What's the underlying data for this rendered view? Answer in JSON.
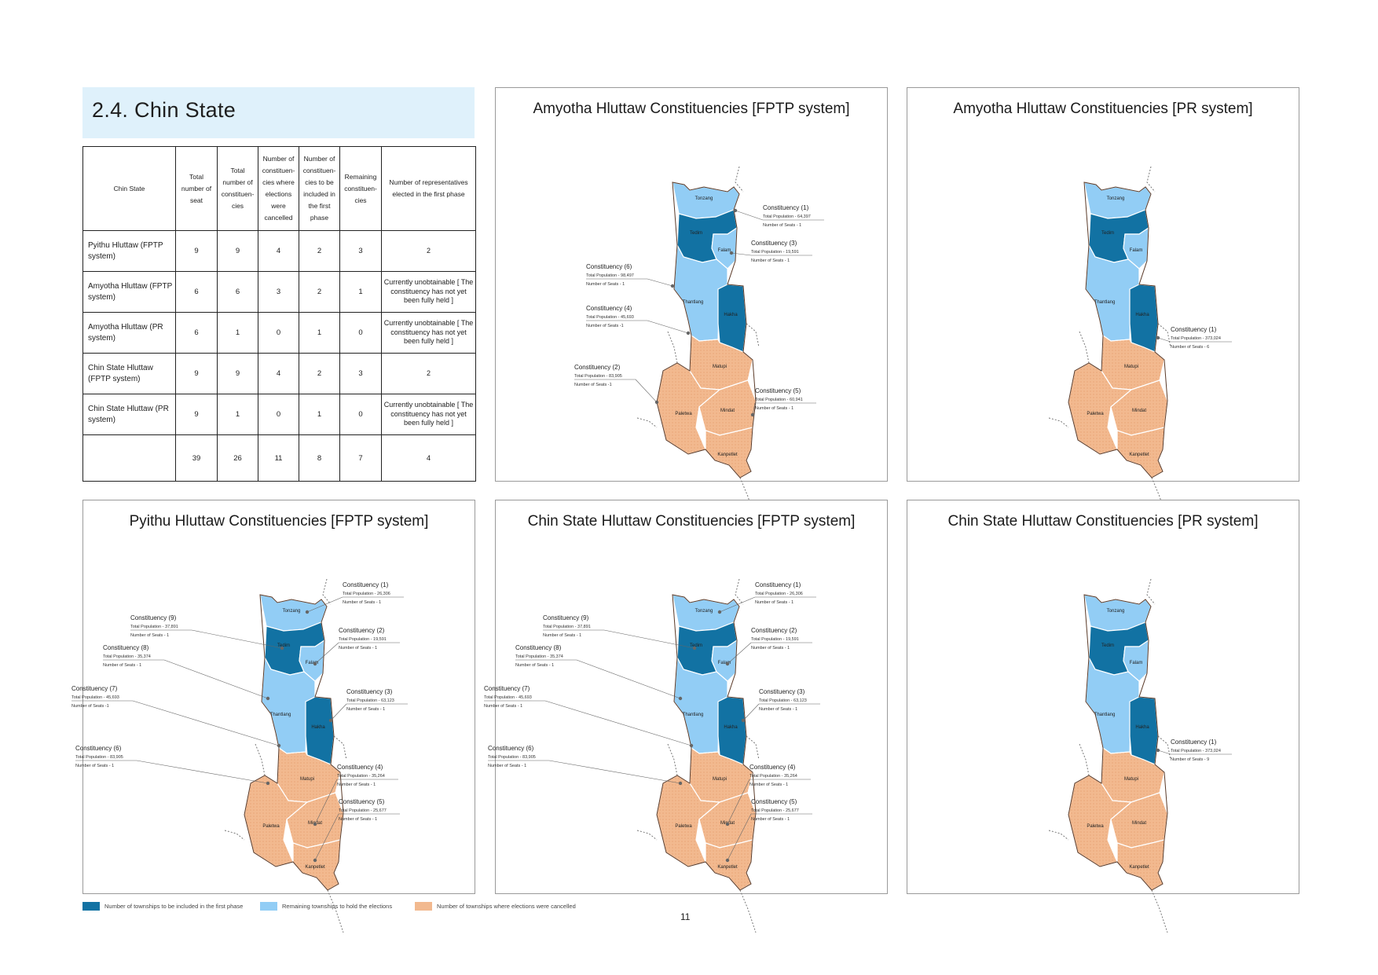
{
  "section_title": "2.4. Chin State",
  "table": {
    "headers": [
      "Chin State",
      "Total number of seat",
      "Total number of constituen-cies",
      "Number of constituen-cies where elections were cancelled",
      "Number of constituen-cies to be included in the first phase",
      "Remaining constituen-cies",
      "Number of representatives elected in the first phase"
    ],
    "rows": [
      {
        "name": "Pyithu Hluttaw (FPTP system)",
        "seats": "9",
        "constituencies": "9",
        "cancelled": "4",
        "first_phase": "2",
        "remaining": "3",
        "elected": "2"
      },
      {
        "name": "Amyotha Hluttaw (FPTP system)",
        "seats": "6",
        "constituencies": "6",
        "cancelled": "3",
        "first_phase": "2",
        "remaining": "1",
        "elected": "Currently unobtainable [ The constituency has not yet been fully held ]"
      },
      {
        "name": "Amyotha Hluttaw (PR system)",
        "seats": "6",
        "constituencies": "1",
        "cancelled": "0",
        "first_phase": "1",
        "remaining": "0",
        "elected": "Currently unobtainable [ The constituency has not yet been fully held ]"
      },
      {
        "name": "Chin State Hluttaw (FPTP system)",
        "seats": "9",
        "constituencies": "9",
        "cancelled": "4",
        "first_phase": "2",
        "remaining": "3",
        "elected": "2"
      },
      {
        "name": "Chin State Hluttaw (PR system)",
        "seats": "9",
        "constituencies": "1",
        "cancelled": "0",
        "first_phase": "1",
        "remaining": "0",
        "elected": "Currently unobtainable [ The constituency has not yet been fully held ]"
      }
    ],
    "totals": {
      "seats": "39",
      "constituencies": "26",
      "cancelled": "11",
      "first_phase": "8",
      "remaining": "7",
      "elected": "4"
    }
  },
  "colors": {
    "first_phase": "#1272a3",
    "remaining": "#92cdf5",
    "cancelled": "#f2b98f",
    "title_bg": "#dff1fb"
  },
  "townships": {
    "tonzang": "Tonzang",
    "tedim": "Tedim",
    "falam": "Falam",
    "thantlang": "Thantlang",
    "hakha": "Hakha",
    "matupi": "Matupi",
    "paletwa": "Paletwa",
    "mindat": "Mindat",
    "kanpetlet": "Kanpetlet"
  },
  "maps": {
    "amyotha_fptp": {
      "title": "Amyotha Hluttaw Constituencies [FPTP system]",
      "constituencies": [
        {
          "label": "Constituency (1)",
          "pop": "Total Population - 64,397",
          "seats": "Number of Seats - 1"
        },
        {
          "label": "Constituency (3)",
          "pop": "Total Population - 19,591",
          "seats": "Number of Seats - 1"
        },
        {
          "label": "Constituency (6)",
          "pop": "Total Population - 98,497",
          "seats": "Number of Seats - 1"
        },
        {
          "label": "Constituency (4)",
          "pop": "Total Population - 45,693",
          "seats": "Number of Seats -1"
        },
        {
          "label": "Constituency (2)",
          "pop": "Total Population - 83,905",
          "seats": "Number of Seats -1"
        },
        {
          "label": "Constituency (5)",
          "pop": "Total Population - 60,941",
          "seats": "Number of Seats - 1"
        }
      ]
    },
    "amyotha_pr": {
      "title": "Amyotha Hluttaw Constituencies [PR system]",
      "constituencies": [
        {
          "label": "Constituency (1)",
          "pop": "Total Population - 373,024",
          "seats": "Number of Seats - 6"
        }
      ]
    },
    "pyithu_fptp": {
      "title": "Pyithu Hluttaw Constituencies [FPTP system]",
      "constituencies": [
        {
          "label": "Constituency (1)",
          "pop": "Total Population - 26,306",
          "seats": "Number of Seats - 1"
        },
        {
          "label": "Constituency (9)",
          "pop": "Total Population - 37,891",
          "seats": "Number of Seats - 1"
        },
        {
          "label": "Constituency (2)",
          "pop": "Total Population - 19,591",
          "seats": "Number of Seats - 1"
        },
        {
          "label": "Constituency (8)",
          "pop": "Total Population - 35,374",
          "seats": "Number of Seats - 1"
        },
        {
          "label": "Constituency (7)",
          "pop": "Total Population - 45,693",
          "seats": "Number of Seats -1"
        },
        {
          "label": "Constituency (3)",
          "pop": "Total Population - 63,123",
          "seats": "Number of Seats - 1"
        },
        {
          "label": "Constituency (6)",
          "pop": "Total Population - 83,905",
          "seats": "Number of Seats - 1"
        },
        {
          "label": "Constituency (4)",
          "pop": "Total Population - 35,264",
          "seats": "Number of Seats - 1"
        },
        {
          "label": "Constituency (5)",
          "pop": "Total Population - 25,677",
          "seats": "Number of Seats - 1"
        }
      ]
    },
    "state_fptp": {
      "title": "Chin State Hluttaw Constituencies [FPTP system]",
      "constituencies": [
        {
          "label": "Constituency (1)",
          "pop": "Total Population - 26,306",
          "seats": "Number of Seats - 1"
        },
        {
          "label": "Constituency (9)",
          "pop": "Total Population - 37,891",
          "seats": "Number of Seats - 1"
        },
        {
          "label": "Constituency (2)",
          "pop": "Total Population - 19,591",
          "seats": "Number of Seats - 1"
        },
        {
          "label": "Constituency (8)",
          "pop": "Total Population - 35,374",
          "seats": "Number of Seats - 1"
        },
        {
          "label": "Constituency (7)",
          "pop": "Total Population - 45,693",
          "seats": "Number of Seats - 1"
        },
        {
          "label": "Constituency (3)",
          "pop": "Total Population - 63,123",
          "seats": "Number of Seats - 1"
        },
        {
          "label": "Constituency (6)",
          "pop": "Total Population - 83,905",
          "seats": "Number of Seats - 1"
        },
        {
          "label": "Constituency (4)",
          "pop": "Total Population - 35,264",
          "seats": "Number of Seats - 1"
        },
        {
          "label": "Constituency (5)",
          "pop": "Total Population - 25,677",
          "seats": "Number of Seats - 1"
        }
      ]
    },
    "state_pr": {
      "title": "Chin State Hluttaw Constituencies [PR system]",
      "constituencies": [
        {
          "label": "Constituency (1)",
          "pop": "Total Population - 373,024",
          "seats": "Number of Seats - 9"
        }
      ]
    }
  },
  "legend": {
    "first_phase": "Number of townships to be included in the first phase",
    "remaining": "Remaining townships to hold the elections",
    "cancelled": "Number of townships where elections were cancelled"
  },
  "page_number": "11"
}
